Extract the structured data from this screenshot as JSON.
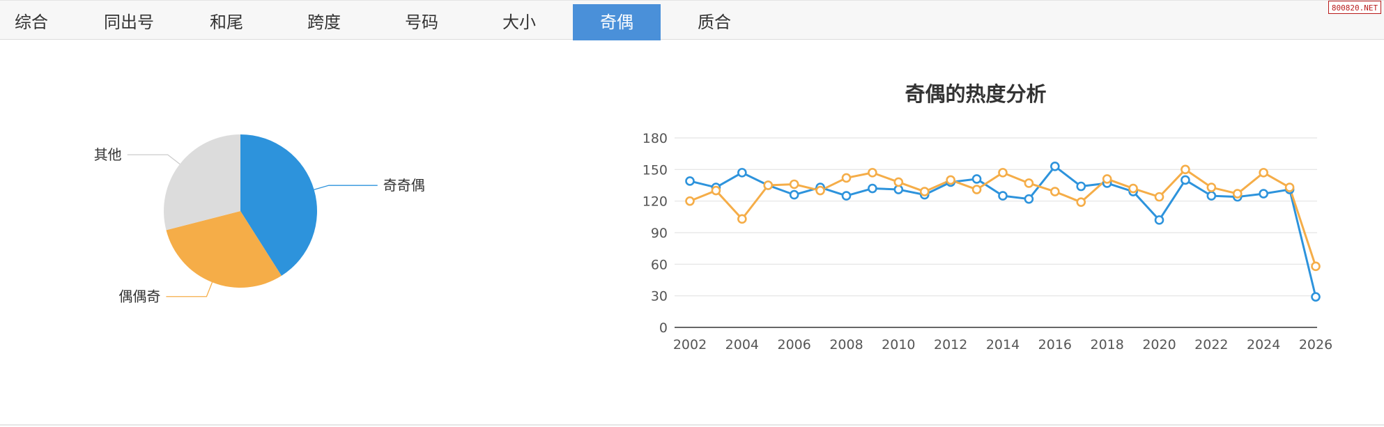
{
  "tabs": [
    {
      "label": "综合",
      "active": false
    },
    {
      "label": "同出号",
      "active": false
    },
    {
      "label": "和尾",
      "active": false
    },
    {
      "label": "跨度",
      "active": false
    },
    {
      "label": "号码",
      "active": false
    },
    {
      "label": "大小",
      "active": false
    },
    {
      "label": "奇偶",
      "active": true
    },
    {
      "label": "质合",
      "active": false
    }
  ],
  "watermark": "800820.NET",
  "chart_data": [
    {
      "type": "pie",
      "slices": [
        {
          "label": "奇奇偶",
          "value": 41,
          "color": "#2d93dc"
        },
        {
          "label": "偶偶奇",
          "value": 30,
          "color": "#f5ad48"
        },
        {
          "label": "其他",
          "value": 29,
          "color": "#dcdcdc"
        }
      ]
    },
    {
      "type": "line",
      "title": "奇偶的热度分析",
      "x": [
        2002,
        2003,
        2004,
        2005,
        2006,
        2007,
        2008,
        2009,
        2010,
        2011,
        2012,
        2013,
        2014,
        2015,
        2016,
        2017,
        2018,
        2019,
        2020,
        2021,
        2022,
        2023,
        2024,
        2025,
        2026
      ],
      "xticks": [
        2002,
        2004,
        2006,
        2008,
        2010,
        2012,
        2014,
        2016,
        2018,
        2020,
        2022,
        2024,
        2026
      ],
      "ylim": [
        0,
        180
      ],
      "yticks": [
        0,
        30,
        60,
        90,
        120,
        150,
        180
      ],
      "grid": true,
      "series": [
        {
          "color": "#2d93dc",
          "values": [
            139,
            133,
            147,
            135,
            126,
            133,
            125,
            132,
            131,
            126,
            138,
            141,
            125,
            122,
            153,
            134,
            137,
            129,
            102,
            140,
            125,
            124,
            127,
            131,
            29
          ]
        },
        {
          "color": "#f5ad48",
          "values": [
            120,
            130,
            103,
            135,
            136,
            130,
            142,
            147,
            138,
            129,
            140,
            131,
            147,
            137,
            129,
            119,
            141,
            132,
            124,
            150,
            133,
            127,
            147,
            133,
            58
          ]
        }
      ]
    }
  ]
}
